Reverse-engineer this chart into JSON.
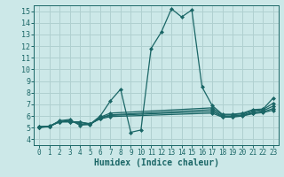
{
  "bg_color": "#cce8e8",
  "grid_color": "#b0d0d0",
  "line_color": "#1a6666",
  "xlabel": "Humidex (Indice chaleur)",
  "xlim": [
    -0.5,
    23.5
  ],
  "ylim": [
    3.5,
    15.5
  ],
  "xticks": [
    0,
    1,
    2,
    3,
    4,
    5,
    6,
    7,
    8,
    9,
    10,
    11,
    12,
    13,
    14,
    15,
    16,
    17,
    18,
    19,
    20,
    21,
    22,
    23
  ],
  "yticks": [
    4,
    5,
    6,
    7,
    8,
    9,
    10,
    11,
    12,
    13,
    14,
    15
  ],
  "multi_lines": [
    {
      "x": [
        0,
        1,
        2,
        3,
        4,
        5,
        6,
        7,
        8,
        9,
        10,
        11,
        12,
        13,
        14,
        15,
        16,
        17,
        18,
        19,
        20,
        21,
        22,
        23
      ],
      "y": [
        5.1,
        5.1,
        5.6,
        5.7,
        5.2,
        5.3,
        6.0,
        7.3,
        8.3,
        4.6,
        4.8,
        11.8,
        13.2,
        15.2,
        14.5,
        15.1,
        8.5,
        6.9,
        6.15,
        6.15,
        6.25,
        6.55,
        6.6,
        7.55
      ]
    },
    {
      "x": [
        0,
        1,
        2,
        3,
        4,
        5,
        6,
        7,
        17,
        18,
        19,
        20,
        21,
        22,
        23
      ],
      "y": [
        5.1,
        5.1,
        5.55,
        5.6,
        5.3,
        5.25,
        5.9,
        6.25,
        6.7,
        6.1,
        6.1,
        6.2,
        6.45,
        6.55,
        7.1
      ]
    },
    {
      "x": [
        0,
        1,
        2,
        3,
        4,
        5,
        6,
        7,
        17,
        18,
        19,
        20,
        21,
        22,
        23
      ],
      "y": [
        5.05,
        5.1,
        5.5,
        5.55,
        5.45,
        5.3,
        5.85,
        6.1,
        6.55,
        6.0,
        6.0,
        6.1,
        6.35,
        6.45,
        6.85
      ]
    },
    {
      "x": [
        0,
        1,
        2,
        3,
        4,
        5,
        6,
        7,
        17,
        18,
        19,
        20,
        21,
        22,
        23
      ],
      "y": [
        5.0,
        5.1,
        5.5,
        5.5,
        5.5,
        5.3,
        5.8,
        6.05,
        6.4,
        5.95,
        5.95,
        6.05,
        6.25,
        6.35,
        6.65
      ]
    },
    {
      "x": [
        0,
        1,
        2,
        3,
        4,
        5,
        6,
        7,
        17,
        18,
        19,
        20,
        21,
        22,
        23
      ],
      "y": [
        5.0,
        5.15,
        5.5,
        5.5,
        5.45,
        5.35,
        5.75,
        5.95,
        6.25,
        5.9,
        5.9,
        6.0,
        6.2,
        6.3,
        6.5
      ]
    }
  ]
}
